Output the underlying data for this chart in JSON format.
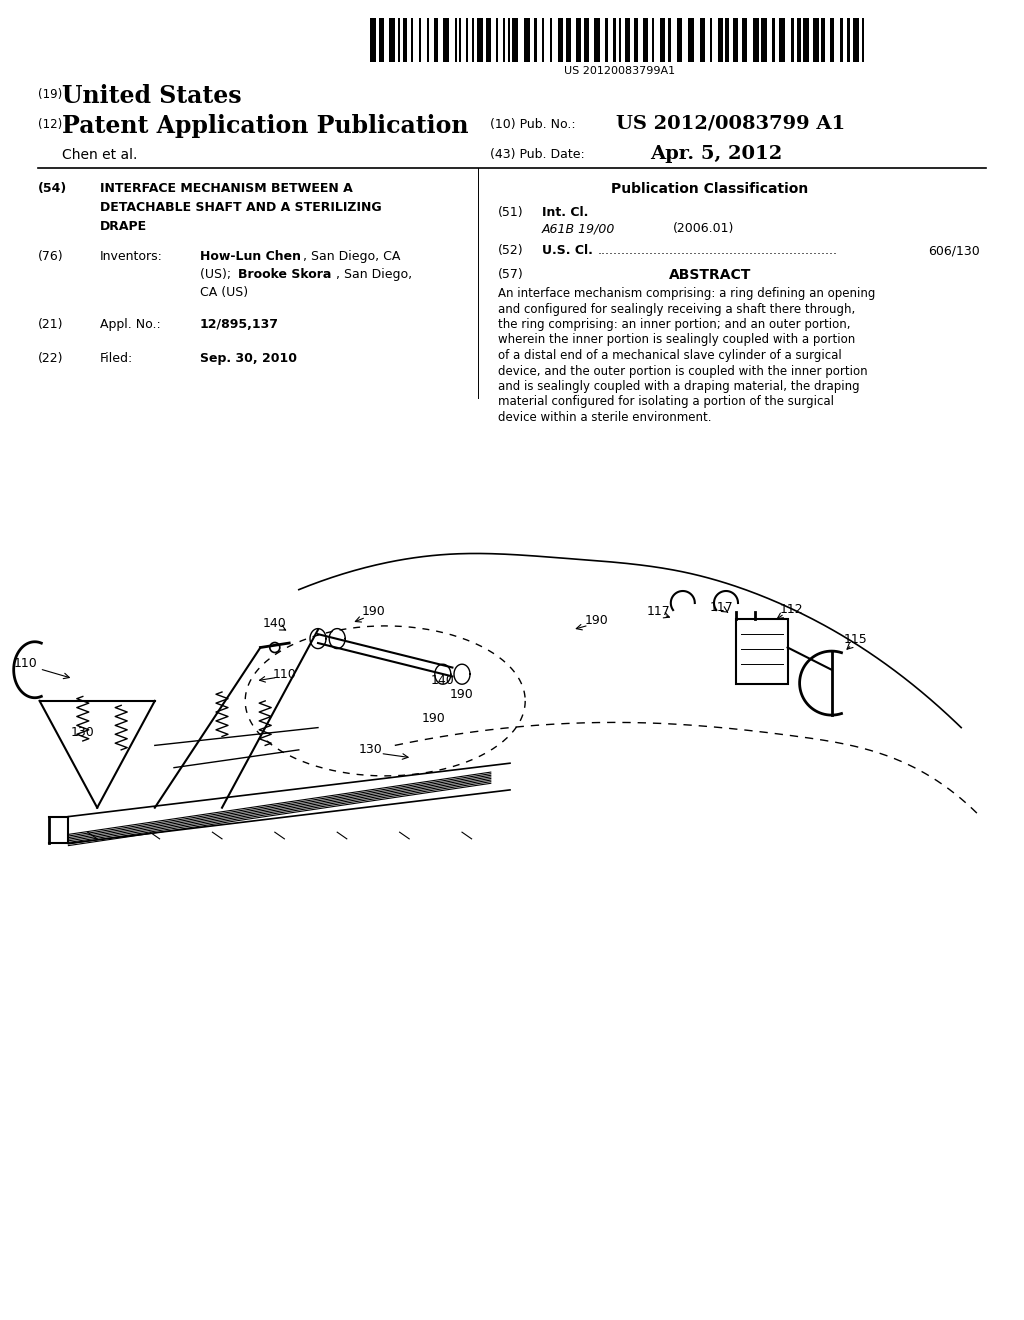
{
  "background_color": "#ffffff",
  "barcode_text": "US 20120083799A1",
  "header": {
    "country_prefix": "(19)",
    "country": "United States",
    "type_prefix": "(12)",
    "type": "Patent Application Publication",
    "pub_no_prefix": "(10) Pub. No.:",
    "pub_no": "US 2012/0083799 A1",
    "author": "Chen et al.",
    "pub_date_prefix": "(43) Pub. Date:",
    "pub_date": "Apr. 5, 2012"
  },
  "left_col": {
    "title_num": "(54)",
    "title_lines": [
      "INTERFACE MECHANISM BETWEEN A",
      "DETACHABLE SHAFT AND A STERILIZING",
      "DRAPE"
    ],
    "inventors_num": "(76)",
    "inventors_label": "Inventors:",
    "appl_num": "(21)",
    "appl_label": "Appl. No.:",
    "appl_value": "12/895,137",
    "filed_num": "(22)",
    "filed_label": "Filed:",
    "filed_value": "Sep. 30, 2010"
  },
  "right_col": {
    "pub_class_title": "Publication Classification",
    "int_cl_num": "(51)",
    "int_cl_label": "Int. Cl.",
    "int_cl_code": "A61B 19/00",
    "int_cl_year": "(2006.01)",
    "us_cl_num": "(52)",
    "us_cl_label": "U.S. Cl.",
    "us_cl_dots": "............................................................",
    "us_cl_value": "606/130",
    "abstract_num": "(57)",
    "abstract_title": "ABSTRACT",
    "abstract_text": "An interface mechanism comprising: a ring defining an opening and configured for sealingly receiving a shaft there through, the ring comprising: an inner portion; and an outer portion, wherein the inner portion is sealingly coupled with a portion of a distal end of a mechanical slave cylinder of a surgical device, and the outer portion is coupled with the inner portion and is sealingly coupled with a draping material, the draping material configured for isolating a portion of the surgical device within a sterile environment."
  }
}
